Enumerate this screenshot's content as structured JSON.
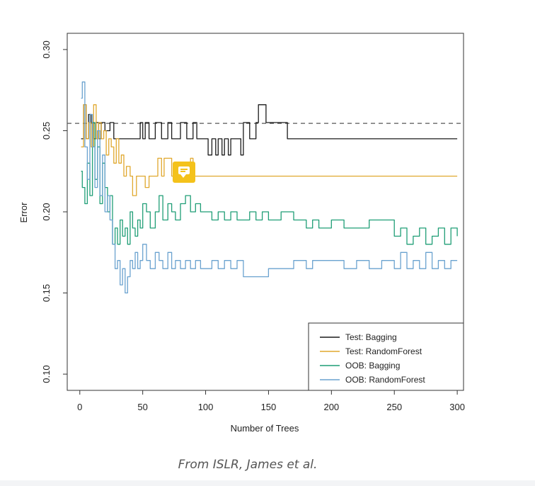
{
  "chart_data": {
    "type": "line",
    "title": "",
    "xlabel": "Number of Trees",
    "ylabel": "Error",
    "xlim": [
      -10,
      305
    ],
    "ylim": [
      0.09,
      0.31
    ],
    "x_ticks": [
      0,
      50,
      100,
      150,
      200,
      250,
      300
    ],
    "x_tick_labels": [
      "0",
      "50",
      "100",
      "150",
      "200",
      "250",
      "300"
    ],
    "y_ticks": [
      0.1,
      0.15,
      0.2,
      0.25,
      0.3
    ],
    "y_tick_labels": [
      "0.10",
      "0.15",
      "0.20",
      "0.25",
      "0.30"
    ],
    "grid": false,
    "legend_position": "bottom-right",
    "reference_line": {
      "y": 0.2545,
      "style": "dashed",
      "color": "#555555"
    },
    "series": [
      {
        "name": "Test: Bagging",
        "color": "#1a1a1a",
        "x": [
          1,
          3,
          5,
          7,
          9,
          11,
          13,
          15,
          17,
          20,
          24,
          27,
          30,
          35,
          40,
          45,
          48,
          50,
          52,
          55,
          60,
          65,
          70,
          73,
          75,
          80,
          85,
          90,
          93,
          95,
          100,
          102,
          105,
          108,
          110,
          113,
          115,
          118,
          120,
          125,
          128,
          130,
          135,
          140,
          142,
          145,
          148,
          150,
          155,
          160,
          165,
          170,
          200,
          250,
          300
        ],
        "y": [
          0.245,
          0.266,
          0.245,
          0.26,
          0.255,
          0.245,
          0.255,
          0.245,
          0.255,
          0.25,
          0.255,
          0.245,
          0.245,
          0.245,
          0.245,
          0.245,
          0.255,
          0.245,
          0.255,
          0.245,
          0.255,
          0.245,
          0.255,
          0.245,
          0.245,
          0.255,
          0.245,
          0.255,
          0.245,
          0.245,
          0.245,
          0.235,
          0.245,
          0.235,
          0.245,
          0.235,
          0.245,
          0.235,
          0.245,
          0.245,
          0.235,
          0.255,
          0.245,
          0.255,
          0.266,
          0.266,
          0.255,
          0.255,
          0.255,
          0.255,
          0.245,
          0.245,
          0.245,
          0.245,
          0.245
        ]
      },
      {
        "name": "Test: RandomForest",
        "color": "#e0a82e",
        "x": [
          1,
          3,
          5,
          7,
          9,
          11,
          13,
          15,
          17,
          19,
          21,
          23,
          25,
          27,
          29,
          31,
          33,
          35,
          37,
          40,
          42,
          45,
          48,
          50,
          52,
          55,
          57,
          60,
          62,
          65,
          67,
          70,
          73,
          75,
          80,
          85,
          88,
          90,
          100,
          150,
          200,
          250,
          300
        ],
        "y": [
          0.24,
          0.266,
          0.245,
          0.255,
          0.24,
          0.266,
          0.245,
          0.255,
          0.245,
          0.25,
          0.235,
          0.245,
          0.24,
          0.23,
          0.245,
          0.23,
          0.235,
          0.222,
          0.228,
          0.222,
          0.21,
          0.222,
          0.222,
          0.222,
          0.215,
          0.222,
          0.222,
          0.222,
          0.233,
          0.222,
          0.233,
          0.233,
          0.222,
          0.222,
          0.222,
          0.222,
          0.233,
          0.222,
          0.222,
          0.222,
          0.222,
          0.222,
          0.222
        ]
      },
      {
        "name": "OOB: Bagging",
        "color": "#1f9e76",
        "x": [
          1,
          2,
          4,
          6,
          8,
          10,
          12,
          14,
          16,
          18,
          20,
          22,
          24,
          26,
          28,
          30,
          32,
          34,
          36,
          38,
          40,
          42,
          44,
          46,
          48,
          50,
          53,
          56,
          60,
          63,
          66,
          70,
          73,
          76,
          80,
          84,
          88,
          92,
          96,
          100,
          105,
          110,
          115,
          120,
          125,
          130,
          135,
          140,
          145,
          150,
          160,
          170,
          180,
          185,
          190,
          195,
          200,
          210,
          220,
          230,
          240,
          250,
          255,
          260,
          265,
          270,
          275,
          280,
          285,
          290,
          295,
          300
        ],
        "y": [
          0.225,
          0.215,
          0.205,
          0.23,
          0.21,
          0.255,
          0.22,
          0.24,
          0.205,
          0.23,
          0.215,
          0.2,
          0.21,
          0.18,
          0.19,
          0.18,
          0.195,
          0.185,
          0.19,
          0.18,
          0.2,
          0.19,
          0.185,
          0.195,
          0.19,
          0.205,
          0.2,
          0.19,
          0.2,
          0.21,
          0.195,
          0.205,
          0.2,
          0.195,
          0.205,
          0.21,
          0.2,
          0.205,
          0.2,
          0.2,
          0.195,
          0.2,
          0.195,
          0.2,
          0.195,
          0.195,
          0.2,
          0.195,
          0.2,
          0.195,
          0.2,
          0.195,
          0.19,
          0.195,
          0.19,
          0.19,
          0.195,
          0.19,
          0.19,
          0.195,
          0.195,
          0.185,
          0.19,
          0.18,
          0.185,
          0.19,
          0.18,
          0.185,
          0.19,
          0.18,
          0.19,
          0.185
        ]
      },
      {
        "name": "OOB: RandomForest",
        "color": "#6aa2cf",
        "x": [
          1,
          2,
          4,
          6,
          8,
          10,
          12,
          14,
          16,
          18,
          20,
          22,
          24,
          26,
          28,
          30,
          32,
          34,
          36,
          38,
          40,
          42,
          44,
          46,
          48,
          50,
          53,
          56,
          60,
          63,
          66,
          70,
          73,
          76,
          80,
          84,
          88,
          92,
          96,
          100,
          105,
          110,
          115,
          120,
          125,
          130,
          140,
          150,
          160,
          170,
          180,
          185,
          190,
          200,
          210,
          220,
          230,
          240,
          250,
          255,
          260,
          265,
          270,
          275,
          280,
          285,
          290,
          295,
          300
        ],
        "y": [
          0.27,
          0.28,
          0.24,
          0.22,
          0.26,
          0.24,
          0.215,
          0.25,
          0.21,
          0.235,
          0.2,
          0.21,
          0.195,
          0.18,
          0.165,
          0.17,
          0.155,
          0.165,
          0.15,
          0.16,
          0.17,
          0.165,
          0.175,
          0.165,
          0.17,
          0.18,
          0.17,
          0.165,
          0.175,
          0.17,
          0.165,
          0.175,
          0.165,
          0.17,
          0.165,
          0.17,
          0.165,
          0.17,
          0.165,
          0.165,
          0.17,
          0.165,
          0.17,
          0.165,
          0.17,
          0.16,
          0.16,
          0.165,
          0.165,
          0.17,
          0.165,
          0.17,
          0.17,
          0.17,
          0.165,
          0.17,
          0.165,
          0.17,
          0.165,
          0.175,
          0.165,
          0.17,
          0.165,
          0.175,
          0.165,
          0.17,
          0.165,
          0.17,
          0.17
        ]
      }
    ],
    "caption": "From ISLR, James et al."
  }
}
